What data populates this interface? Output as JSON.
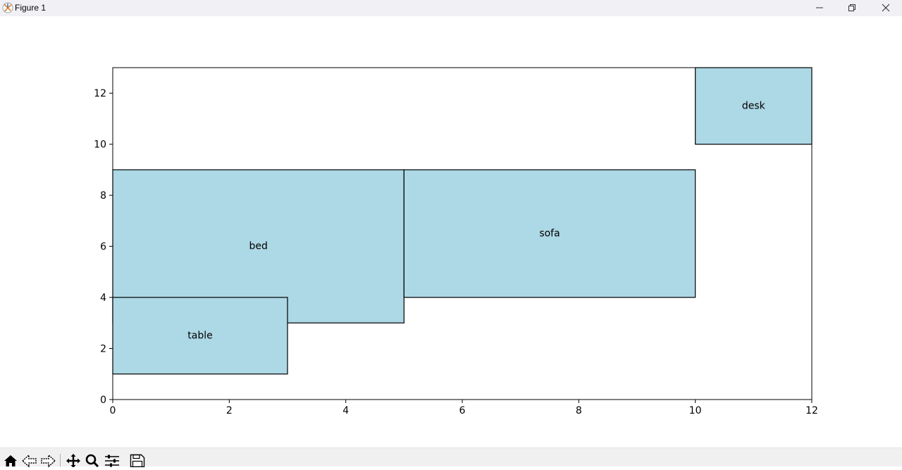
{
  "window": {
    "title": "Figure 1",
    "app_icon": "matplotlib-icon",
    "controls": [
      "minimize-icon",
      "restore-icon",
      "close-icon"
    ]
  },
  "toolbar": {
    "tools": [
      "home-icon",
      "back-arrow-icon",
      "forward-arrow-icon",
      "pan-move-icon",
      "zoom-magnifier-icon",
      "subplots-config-icon",
      "save-floppy-icon"
    ]
  },
  "colors": {
    "rect_fill": "#add8e6",
    "rect_edge": "#000000",
    "axes_edge": "#000000",
    "titlebar_bg": "#f1f0f5",
    "toolbar_bg": "#f0f0f0"
  },
  "chart_data": {
    "type": "rectangles",
    "title": "",
    "xlabel": "",
    "ylabel": "",
    "xlim": [
      0,
      12
    ],
    "ylim": [
      0,
      13
    ],
    "xticks": [
      0,
      2,
      4,
      6,
      8,
      10,
      12
    ],
    "yticks": [
      0,
      2,
      4,
      6,
      8,
      10,
      12
    ],
    "grid": false,
    "rectangles": [
      {
        "label": "bed",
        "x": 0,
        "y": 3,
        "width": 5,
        "height": 6,
        "label_x": 2.5,
        "label_y": 6.0
      },
      {
        "label": "sofa",
        "x": 5,
        "y": 4,
        "width": 5,
        "height": 5,
        "label_x": 7.5,
        "label_y": 6.5
      },
      {
        "label": "table",
        "x": 0,
        "y": 1,
        "width": 3,
        "height": 3,
        "label_x": 1.5,
        "label_y": 2.5
      },
      {
        "label": "desk",
        "x": 10,
        "y": 10,
        "width": 2,
        "height": 3,
        "label_x": 11.0,
        "label_y": 11.5
      }
    ]
  }
}
